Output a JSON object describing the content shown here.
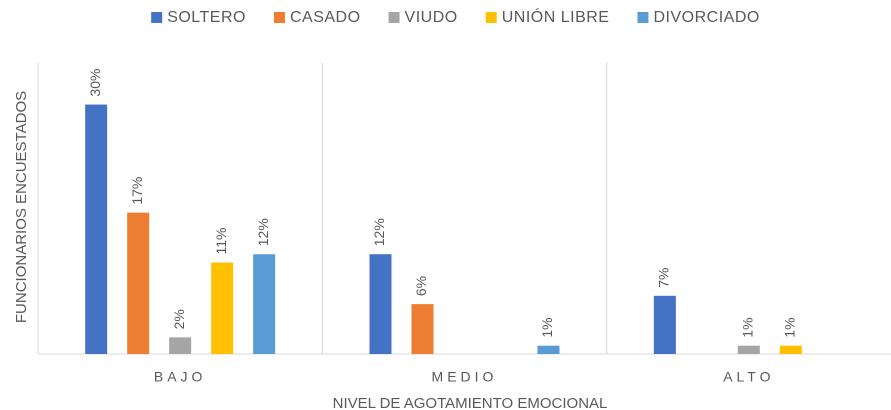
{
  "chart_data": {
    "type": "bar",
    "x_label": "NIVEL DE AGOTAMIENTO EMOCIONAL",
    "y_label": "FUNCIONARIOS ENCUESTADOS",
    "categories": [
      "BAJO",
      "MEDIO",
      "ALTO"
    ],
    "series": [
      {
        "name": "SOLTERO",
        "color": "#4472c4",
        "values": [
          30,
          12,
          7
        ],
        "value_labels": [
          "30%",
          "12%",
          "7%"
        ]
      },
      {
        "name": "CASADO",
        "color": "#ed7d31",
        "values": [
          17,
          6,
          null
        ],
        "value_labels": [
          "17%",
          "6%",
          null
        ]
      },
      {
        "name": "VIUDO",
        "color": "#a5a5a5",
        "values": [
          2,
          null,
          1
        ],
        "value_labels": [
          "2%",
          null,
          "1%"
        ]
      },
      {
        "name": "UNIÓN LIBRE",
        "color": "#ffc000",
        "values": [
          11,
          null,
          1
        ],
        "value_labels": [
          "11%",
          null,
          "1%"
        ]
      },
      {
        "name": "DIVORCIADO",
        "color": "#5b9bd5",
        "values": [
          12,
          1,
          null
        ],
        "value_labels": [
          "12%",
          "1%",
          null
        ]
      }
    ],
    "ylim": [
      0,
      35
    ],
    "legend": "top"
  }
}
